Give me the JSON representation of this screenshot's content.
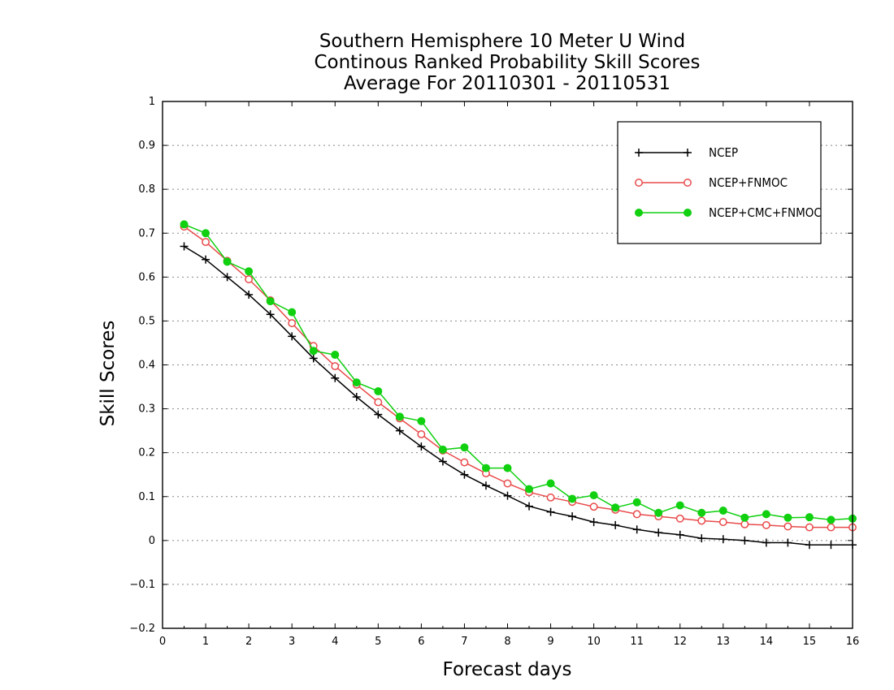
{
  "chart_data": {
    "type": "line",
    "title": "Southern Hemisphere 10 Meter U Wind",
    "subtitle": "Continous Ranked Probability Skill Scores",
    "subtitle2": "Average For 20110301 - 20110531",
    "xlabel": "Forecast days",
    "ylabel": "Skill Scores",
    "xlim": [
      0,
      16
    ],
    "ylim": [
      -0.2,
      1
    ],
    "xticks": [
      "0",
      "1",
      "2",
      "3",
      "4",
      "5",
      "6",
      "7",
      "8",
      "9",
      "10",
      "11",
      "12",
      "13",
      "14",
      "15",
      "16"
    ],
    "yticks": [
      "−0.2",
      "−0.1",
      "0",
      "0.1",
      "0.2",
      "0.3",
      "0.4",
      "0.5",
      "0.6",
      "0.7",
      "0.8",
      "0.9",
      "1"
    ],
    "grid": true,
    "legend_position": "top-right",
    "x": [
      0.5,
      1,
      1.5,
      2,
      2.5,
      3,
      3.5,
      4,
      4.5,
      5,
      5.5,
      6,
      6.5,
      7,
      7.5,
      8,
      8.5,
      9,
      9.5,
      10,
      10.5,
      11,
      11.5,
      12,
      12.5,
      13,
      13.5,
      14,
      14.5,
      15,
      15.5,
      16
    ],
    "series": [
      {
        "name": "NCEP",
        "color": "#000000",
        "marker": "plus",
        "values": [
          0.67,
          0.64,
          0.6,
          0.56,
          0.515,
          0.465,
          0.415,
          0.37,
          0.327,
          0.287,
          0.25,
          0.214,
          0.18,
          0.15,
          0.125,
          0.102,
          0.078,
          0.065,
          0.055,
          0.042,
          0.035,
          0.025,
          0.018,
          0.013,
          0.005,
          0.003,
          0.0,
          -0.005,
          -0.005,
          -0.01,
          -0.01,
          -0.01
        ]
      },
      {
        "name": "NCEP+FNMOC",
        "color": "#e84a4a",
        "marker": "open-circle",
        "values": [
          0.715,
          0.68,
          0.637,
          0.595,
          0.547,
          0.495,
          0.443,
          0.397,
          0.355,
          0.315,
          0.278,
          0.242,
          0.205,
          0.178,
          0.153,
          0.13,
          0.11,
          0.098,
          0.088,
          0.077,
          0.07,
          0.06,
          0.055,
          0.05,
          0.045,
          0.042,
          0.037,
          0.035,
          0.032,
          0.03,
          0.03,
          0.03
        ]
      },
      {
        "name": "NCEP+CMC+FNMOC",
        "color": "#10d010",
        "marker": "filled-circle",
        "values": [
          0.72,
          0.7,
          0.635,
          0.613,
          0.545,
          0.52,
          0.432,
          0.423,
          0.36,
          0.34,
          0.282,
          0.272,
          0.207,
          0.212,
          0.165,
          0.165,
          0.117,
          0.13,
          0.095,
          0.103,
          0.075,
          0.087,
          0.063,
          0.08,
          0.063,
          0.068,
          0.052,
          0.06,
          0.052,
          0.053,
          0.047,
          0.05
        ]
      }
    ]
  }
}
